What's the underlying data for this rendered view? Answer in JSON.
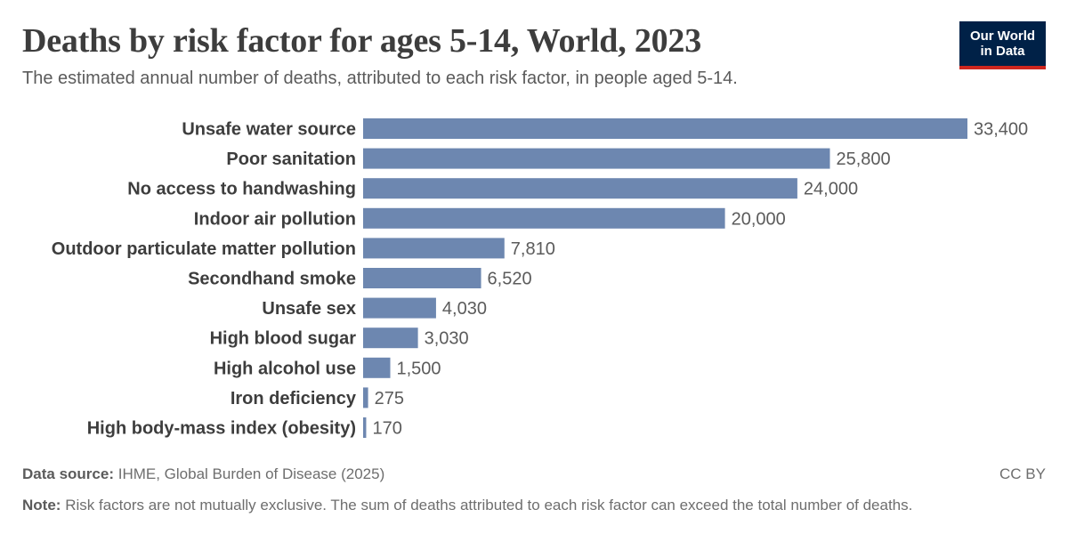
{
  "header": {
    "title": "Deaths by risk factor for ages 5-14, World, 2023",
    "subtitle": "The estimated annual number of deaths, attributed to each risk factor, in people aged 5-14.",
    "logo_line1": "Our World",
    "logo_line2": "in Data"
  },
  "footer": {
    "source_label": "Data source:",
    "source_text": "IHME, Global Burden of Disease (2025)",
    "license": "CC BY",
    "note_label": "Note:",
    "note_text": "Risk factors are not mutually exclusive. The sum of deaths attributed to each risk factor can exceed the total number of deaths."
  },
  "colors": {
    "bar": "#6d87b0",
    "logo_bg": "#002147",
    "logo_accent": "#ce261e"
  },
  "chart_data": {
    "type": "bar",
    "orientation": "horizontal",
    "title": "Deaths by risk factor for ages 5-14, World, 2023",
    "categories": [
      "Unsafe water source",
      "Poor sanitation",
      "No access to handwashing",
      "Indoor air pollution",
      "Outdoor particulate matter pollution",
      "Secondhand smoke",
      "Unsafe sex",
      "High blood sugar",
      "High alcohol use",
      "Iron deficiency",
      "High body-mass index (obesity)"
    ],
    "values": [
      33400,
      25800,
      24000,
      20000,
      7810,
      6520,
      4030,
      3030,
      1500,
      275,
      170
    ],
    "value_labels": [
      "33,400",
      "25,800",
      "24,000",
      "20,000",
      "7,810",
      "6,520",
      "4,030",
      "3,030",
      "1,500",
      "275",
      "170"
    ],
    "xlim": [
      0,
      33400
    ],
    "grid": false,
    "legend": "none"
  }
}
